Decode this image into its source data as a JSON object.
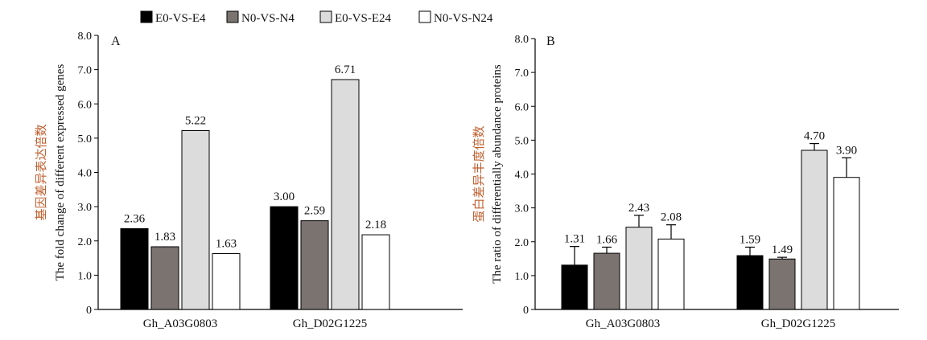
{
  "legend": [
    {
      "label": "E0-VS-E4",
      "color": "#000000"
    },
    {
      "label": "N0-VS-N4",
      "color": "#7a7370"
    },
    {
      "label": "E0-VS-E24",
      "color": "#dcdcdc"
    },
    {
      "label": "N0-VS-N24",
      "color": "#ffffff"
    }
  ],
  "chart_data": [
    {
      "type": "bar",
      "panel_label": "A",
      "title": "",
      "ylabel_cn": "基因差异表达倍数",
      "ylabel_en": "The fold change of different expressed genes",
      "xlabel": "",
      "ylim": [
        0,
        8
      ],
      "yticks": [
        "0",
        "1.0",
        "2.0",
        "3.0",
        "4.0",
        "5.0",
        "6.0",
        "7.0",
        "8.0"
      ],
      "categories": [
        "Gh_A03G0803",
        "Gh_D02G1225"
      ],
      "series": [
        {
          "name": "E0-VS-E4",
          "values": [
            2.36,
            3.0
          ],
          "labels": [
            "2.36",
            "3.00"
          ]
        },
        {
          "name": "N0-VS-N4",
          "values": [
            1.83,
            2.59
          ],
          "labels": [
            "1.83",
            "2.59"
          ]
        },
        {
          "name": "E0-VS-E24",
          "values": [
            5.22,
            6.71
          ],
          "labels": [
            "5.22",
            "6.71"
          ]
        },
        {
          "name": "N0-VS-N24",
          "values": [
            1.63,
            2.18
          ],
          "labels": [
            "1.63",
            "2.18"
          ]
        }
      ],
      "grid": false
    },
    {
      "type": "bar",
      "panel_label": "B",
      "title": "",
      "ylabel_cn": "蛋白差异丰度倍数",
      "ylabel_en": "The ratio of differentially abundance proteins",
      "xlabel": "",
      "ylim": [
        0,
        8
      ],
      "yticks": [
        "0",
        "1.0",
        "2.0",
        "3.0",
        "4.0",
        "5.0",
        "6.0",
        "7.0",
        "8.0"
      ],
      "categories": [
        "Gh_A03G0803",
        "Gh_D02G1225"
      ],
      "series": [
        {
          "name": "E0-VS-E4",
          "values": [
            1.31,
            1.59
          ],
          "labels": [
            "1.31",
            "1.59"
          ],
          "errors": [
            0.55,
            0.25
          ]
        },
        {
          "name": "N0-VS-N4",
          "values": [
            1.66,
            1.49
          ],
          "labels": [
            "1.66",
            "1.49"
          ],
          "errors": [
            0.18,
            0.05
          ]
        },
        {
          "name": "E0-VS-E24",
          "values": [
            2.43,
            4.7
          ],
          "labels": [
            "2.43",
            "4.70"
          ],
          "errors": [
            0.35,
            0.2
          ]
        },
        {
          "name": "N0-VS-N24",
          "values": [
            2.08,
            3.9
          ],
          "labels": [
            "2.08",
            "3.90"
          ],
          "errors": [
            0.42,
            0.58
          ]
        }
      ],
      "grid": false
    }
  ]
}
